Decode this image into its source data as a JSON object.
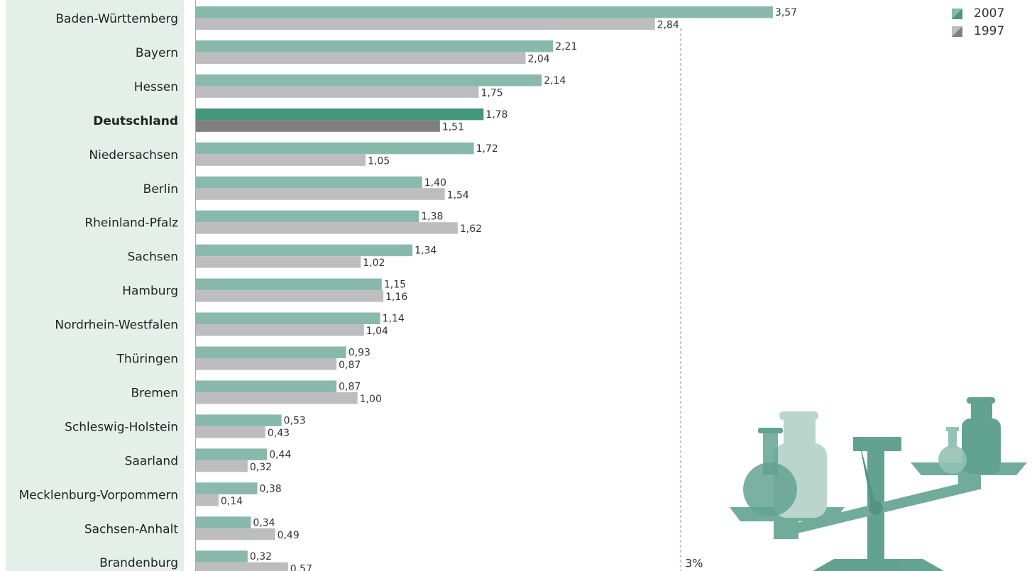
{
  "chart_data": {
    "type": "bar",
    "orientation": "horizontal",
    "categories": [
      "Baden-Württemberg",
      "Bayern",
      "Hessen",
      "Deutschland",
      "Niedersachsen",
      "Berlin",
      "Rheinland-Pfalz",
      "Sachsen",
      "Hamburg",
      "Nordrhein-Westfalen",
      "Thüringen",
      "Bremen",
      "Schleswig-Holstein",
      "Saarland",
      "Mecklenburg-Vorpommern",
      "Sachsen-Anhalt",
      "Brandenburg"
    ],
    "highlight": "Deutschland",
    "series": [
      {
        "name": "2007",
        "color": "#88b9aa",
        "highlight_color": "#46957f",
        "values": [
          3.57,
          2.21,
          2.14,
          1.78,
          1.72,
          1.4,
          1.38,
          1.34,
          1.15,
          1.14,
          0.93,
          0.87,
          0.53,
          0.44,
          0.38,
          0.34,
          0.32
        ],
        "value_labels": [
          "3,57",
          "2,21",
          "2,14",
          "1,78",
          "1,72",
          "1,40",
          "1,38",
          "1,34",
          "1,15",
          "1,14",
          "0,93",
          "0,87",
          "0,53",
          "0,44",
          "0,38",
          "0,34",
          "0,32"
        ]
      },
      {
        "name": "1997",
        "color": "#bdbdbf",
        "highlight_color": "#7f7f7f",
        "values": [
          2.84,
          2.04,
          1.75,
          1.51,
          1.05,
          1.54,
          1.62,
          1.02,
          1.16,
          1.04,
          0.87,
          1.0,
          0.43,
          0.32,
          0.14,
          0.49,
          0.57
        ],
        "value_labels": [
          "2,84",
          "2,04",
          "1,75",
          "1,51",
          "1,05",
          "1,54",
          "1,62",
          "1,02",
          "1,16",
          "1,04",
          "0,87",
          "1,00",
          "0,43",
          "0,32",
          "0,14",
          "0,49",
          "0,57"
        ]
      }
    ],
    "reference_line": {
      "value": 3,
      "label": "3%"
    },
    "legend": "top-right"
  }
}
